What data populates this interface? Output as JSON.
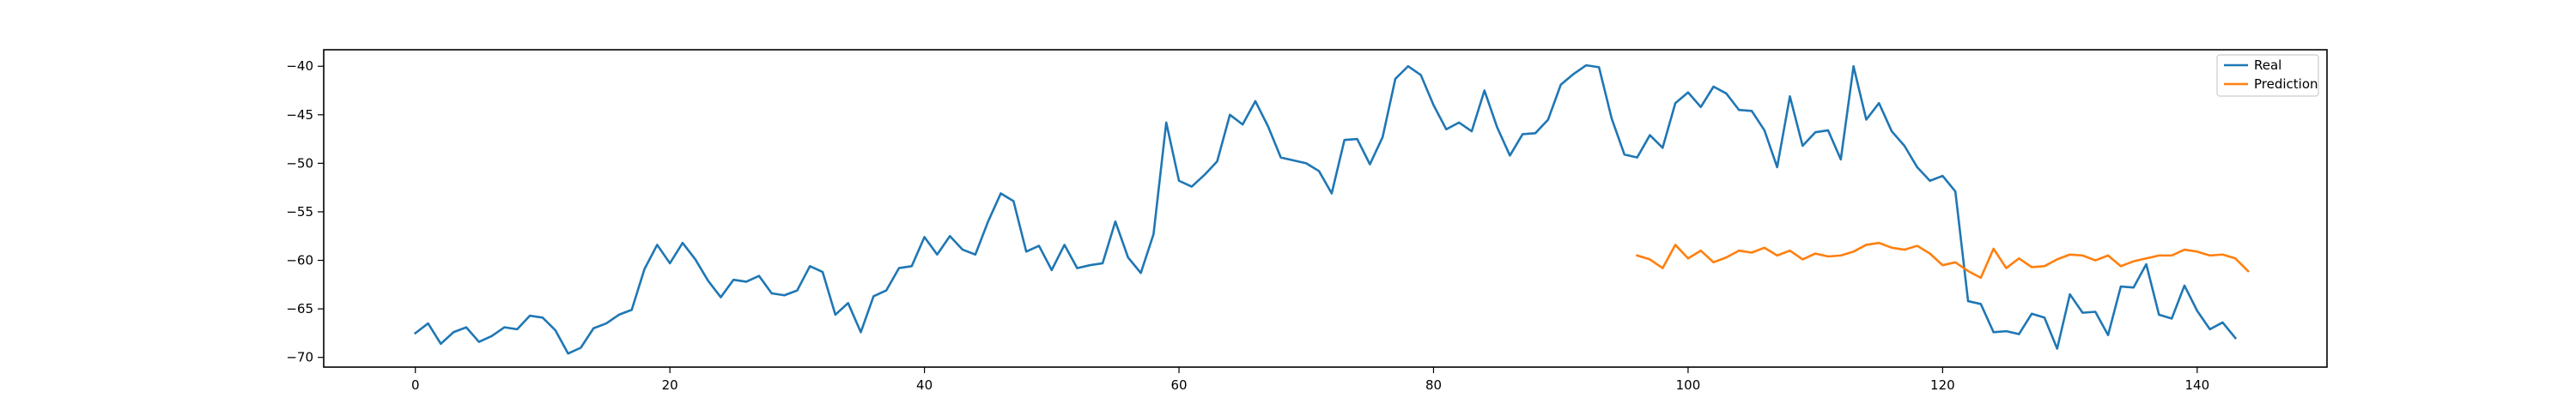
{
  "chart_data": {
    "type": "line",
    "title": "",
    "xlabel": "",
    "ylabel": "",
    "xlim": [
      -7.2,
      150.2
    ],
    "ylim": [
      -71,
      -38.3
    ],
    "xticks": [
      0,
      20,
      40,
      60,
      80,
      100,
      120,
      140
    ],
    "xtick_labels": [
      "0",
      "20",
      "40",
      "60",
      "80",
      "100",
      "120",
      "140"
    ],
    "yticks": [
      -40,
      -45,
      -50,
      -55,
      -60,
      -65,
      -70
    ],
    "ytick_labels": [
      "−40",
      "−45",
      "−50",
      "−55",
      "−60",
      "−65",
      "−70"
    ],
    "grid": false,
    "legend_position": "top-right",
    "series": [
      {
        "name": "Real",
        "color": "#1f77b4",
        "x_start": 0,
        "values": [
          -67.5,
          -66.5,
          -68.6,
          -67.4,
          -66.9,
          -68.4,
          -67.8,
          -66.9,
          -67.1,
          -65.7,
          -65.9,
          -67.2,
          -69.6,
          -69.0,
          -67.0,
          -66.5,
          -65.6,
          -65.1,
          -60.9,
          -58.4,
          -60.3,
          -58.2,
          -59.9,
          -62.1,
          -63.8,
          -62.0,
          -62.2,
          -61.6,
          -63.4,
          -63.6,
          -63.1,
          -60.6,
          -61.2,
          -65.6,
          -64.4,
          -67.4,
          -63.7,
          -63.1,
          -60.8,
          -60.6,
          -57.6,
          -59.4,
          -57.5,
          -58.9,
          -59.4,
          -56.0,
          -53.1,
          -53.9,
          -59.1,
          -58.5,
          -61.0,
          -58.4,
          -60.8,
          -60.5,
          -60.3,
          -56.0,
          -59.7,
          -61.3,
          -57.3,
          -45.8,
          -51.8,
          -52.4,
          -51.2,
          -49.8,
          -45.0,
          -46.0,
          -43.6,
          -46.2,
          -49.4,
          -49.7,
          -50.0,
          -50.8,
          -53.1,
          -47.6,
          -47.5,
          -50.1,
          -47.3,
          -41.3,
          -40.0,
          -40.9,
          -44.0,
          -46.5,
          -45.8,
          -46.7,
          -42.5,
          -46.3,
          -49.2,
          -47.0,
          -46.9,
          -45.5,
          -41.9,
          -40.8,
          -39.9,
          -40.1,
          -45.4,
          -49.1,
          -49.4,
          -47.1,
          -48.4,
          -43.8,
          -42.7,
          -44.2,
          -42.1,
          -42.8,
          -44.5,
          -44.6,
          -46.6,
          -50.4,
          -43.1,
          -48.2,
          -46.8,
          -46.6,
          -49.6,
          -40.0,
          -45.5,
          -43.8,
          -46.7,
          -48.2,
          -50.4,
          -51.8,
          -51.3,
          -52.9,
          -64.2,
          -64.5,
          -67.4,
          -67.3,
          -67.6,
          -65.5,
          -65.9,
          -69.1,
          -63.5,
          -65.4,
          -65.3,
          -67.7,
          -62.7,
          -62.8,
          -60.4,
          -65.6,
          -66.0,
          -62.6,
          -65.2,
          -67.1,
          -66.4,
          -68.0
        ]
      },
      {
        "name": "Prediction",
        "color": "#ff7f0e",
        "x_start": 96,
        "values": [
          -59.5,
          -59.9,
          -60.8,
          -58.4,
          -59.8,
          -59.0,
          -60.2,
          -59.7,
          -59.0,
          -59.2,
          -58.7,
          -59.5,
          -59.0,
          -59.9,
          -59.3,
          -59.6,
          -59.5,
          -59.1,
          -58.4,
          -58.2,
          -58.7,
          -58.9,
          -58.5,
          -59.3,
          -60.5,
          -60.2,
          -61.1,
          -61.8,
          -58.8,
          -60.8,
          -59.8,
          -60.7,
          -60.6,
          -59.9,
          -59.4,
          -59.5,
          -60.0,
          -59.5,
          -60.6,
          -60.1,
          -59.8,
          -59.5,
          -59.5,
          -58.9,
          -59.1,
          -59.5,
          -59.4,
          -59.8,
          -61.1
        ]
      }
    ]
  }
}
